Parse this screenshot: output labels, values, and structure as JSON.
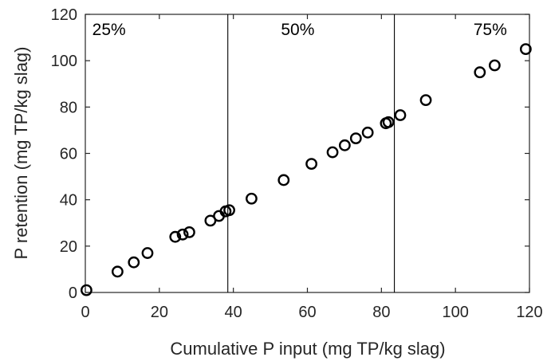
{
  "chart_data": {
    "type": "scatter",
    "title": "",
    "xlabel": "Cumulative P input (mg TP/kg slag)",
    "ylabel": "P retention (mg TP/kg slag)",
    "xlim": [
      0,
      120
    ],
    "ylim": [
      0,
      120
    ],
    "xticks": [
      "0",
      "20",
      "40",
      "60",
      "80",
      "100",
      "120"
    ],
    "yticks": [
      "0",
      "20",
      "40",
      "60",
      "80",
      "100",
      "120"
    ],
    "grid": false,
    "vlines": [
      38.5,
      83.5
    ],
    "region_labels": [
      {
        "text": "25%",
        "x": 1,
        "y": 118
      },
      {
        "text": "50%",
        "x": 52,
        "y": 118
      },
      {
        "text": "75%",
        "x": 104,
        "y": 118
      }
    ],
    "marker_color": "#000000",
    "series": [
      {
        "x": [
          0.3,
          8.7,
          13.1,
          16.8,
          24.3,
          26.3,
          28.1,
          33.8,
          36.1,
          37.9,
          38.9,
          44.9,
          53.6,
          61.1,
          66.8,
          70.1,
          73.1,
          76.3,
          81.2,
          81.9,
          85.1,
          92.0,
          106.6,
          110.6,
          119.0
        ],
        "y": [
          1,
          9,
          13,
          17,
          24,
          25,
          26,
          31,
          33,
          35,
          35.5,
          40.5,
          48.5,
          55.5,
          60.5,
          63.5,
          66.5,
          69,
          73,
          73.5,
          76.5,
          83,
          95,
          98,
          105
        ]
      }
    ]
  }
}
